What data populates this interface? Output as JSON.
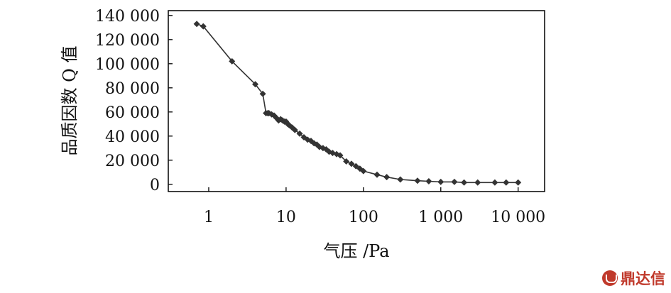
{
  "chart_data": {
    "type": "line",
    "title": "",
    "xlabel": "气压 /Pa",
    "ylabel": "品质因数 Q 值",
    "xscale": "log",
    "xlim": [
      0.3,
      22000
    ],
    "ylim": [
      -6000,
      144000
    ],
    "xticks": [
      1,
      10,
      100,
      1000,
      10000
    ],
    "xtick_labels": [
      "1",
      "10",
      "100",
      "1 000",
      "10 000"
    ],
    "yticks": [
      0,
      20000,
      40000,
      60000,
      80000,
      100000,
      120000,
      140000
    ],
    "ytick_labels": [
      "0",
      "20 000",
      "40 000",
      "60 000",
      "80 000",
      "100 000",
      "120 000",
      "140 000"
    ],
    "grid": false,
    "series": [
      {
        "name": "Q",
        "x": [
          0.7,
          0.85,
          2,
          4,
          5,
          5.5,
          5.8,
          6,
          6.5,
          7,
          7.5,
          8,
          8.5,
          9,
          9.5,
          10,
          10.5,
          11,
          12,
          13,
          15,
          17,
          19,
          21,
          23,
          25,
          27,
          30,
          33,
          36,
          40,
          45,
          50,
          60,
          70,
          80,
          90,
          100,
          150,
          200,
          300,
          500,
          700,
          1000,
          1500,
          2000,
          3000,
          5000,
          7000,
          10000
        ],
        "y": [
          133000,
          131000,
          102000,
          83000,
          75000,
          59000,
          59000,
          59000,
          58000,
          57000,
          55000,
          53000,
          54000,
          53000,
          52000,
          52000,
          50000,
          49000,
          47000,
          45000,
          42000,
          39000,
          37000,
          36000,
          34000,
          33000,
          31000,
          30000,
          29000,
          27000,
          26000,
          25000,
          24000,
          19000,
          17000,
          15000,
          13000,
          11000,
          8000,
          6000,
          4000,
          3000,
          2500,
          2000,
          2000,
          1500,
          1500,
          1500,
          1500,
          1500
        ]
      }
    ]
  },
  "watermark": {
    "text": "鼎达信"
  }
}
